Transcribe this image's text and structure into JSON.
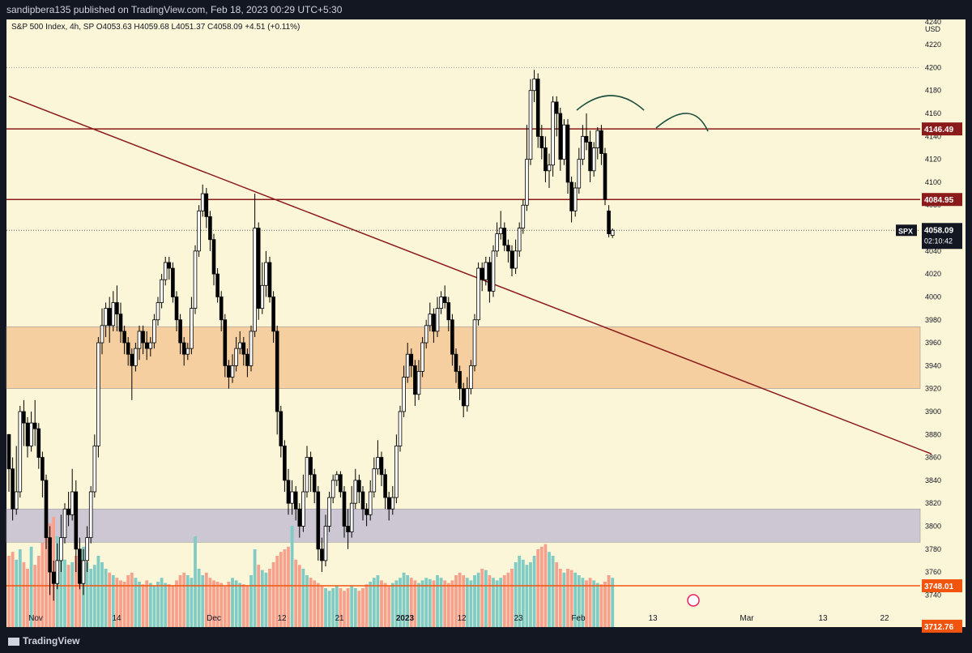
{
  "header": {
    "publish_line": "sandipbera135 published on TradingView.com, Feb 18, 2023 00:29 UTC+5:30"
  },
  "legend": {
    "text": "S&P 500 Index, 4h, SP  O4053.63  H4059.68  L4051.37  C4058.09  +4.51 (+0.11%)"
  },
  "footer": {
    "brand": "TradingView"
  },
  "colors": {
    "background": "#fbf6d8",
    "up_candle_fill": "#ffffff",
    "down_candle_fill": "#000000",
    "volume_up": "#80cbc4",
    "volume_down": "#f7a08c",
    "resistance_line": "#8b1a1a",
    "support_line": "#f0540f",
    "supply_zone": "#f5cfa0",
    "demand_zone": "#cdc7d4",
    "trendline": "#8b1a1a",
    "annotation": "#1f4f3f"
  },
  "chart_data": {
    "type": "candlestick",
    "symbol": "SPX",
    "timeframe": "4h",
    "currency": "USD",
    "ylim": [
      3712,
      4242
    ],
    "y_ticks": [
      3740,
      3760,
      3780,
      3800,
      3820,
      3840,
      3860,
      3880,
      3900,
      3920,
      3940,
      3960,
      3980,
      4000,
      4020,
      4040,
      4060,
      4080,
      4100,
      4120,
      4140,
      4160,
      4180,
      4200,
      4220,
      4240
    ],
    "x_ticks": [
      "Nov",
      "14",
      "Dec",
      "12",
      "21",
      "2023",
      "12",
      "23",
      "Feb",
      "13",
      "Mar",
      "13",
      "22"
    ],
    "price_labels": [
      {
        "label": "4146.49",
        "value": 4146.49,
        "kind": "resistance"
      },
      {
        "label": "4084.95",
        "value": 4084.95,
        "kind": "resistance"
      },
      {
        "label": "4058.09",
        "value": 4058.09,
        "kind": "last",
        "symbol": "SPX",
        "countdown": "02:10:42"
      },
      {
        "label": "3748.01",
        "value": 3748.01,
        "kind": "support"
      },
      {
        "label": "3712.76",
        "value": 3712.76,
        "kind": "support"
      }
    ],
    "horizontal_lines": [
      4146.49,
      4084.95,
      3748.01
    ],
    "zones": [
      {
        "name": "supply",
        "from": 3920,
        "to": 3974
      },
      {
        "name": "demand",
        "from": 3786,
        "to": 3815
      }
    ],
    "trendline": [
      {
        "bar": 0,
        "price": 4175
      },
      {
        "bar": 165,
        "price": 3863
      }
    ],
    "candles": [
      [
        3880,
        3850,
        3880,
        3830
      ],
      [
        3850,
        3815,
        3860,
        3805
      ],
      [
        3815,
        3830,
        3870,
        3810
      ],
      [
        3830,
        3900,
        3905,
        3825
      ],
      [
        3900,
        3890,
        3910,
        3870
      ],
      [
        3890,
        3870,
        3895,
        3860
      ],
      [
        3870,
        3890,
        3900,
        3865
      ],
      [
        3890,
        3885,
        3910,
        3870
      ],
      [
        3885,
        3860,
        3890,
        3850
      ],
      [
        3860,
        3840,
        3865,
        3825
      ],
      [
        3840,
        3790,
        3845,
        3780
      ],
      [
        3790,
        3760,
        3800,
        3740
      ],
      [
        3760,
        3750,
        3770,
        3735
      ],
      [
        3750,
        3770,
        3785,
        3745
      ],
      [
        3770,
        3790,
        3810,
        3760
      ],
      [
        3790,
        3815,
        3820,
        3785
      ],
      [
        3815,
        3810,
        3830,
        3800
      ],
      [
        3810,
        3830,
        3850,
        3805
      ],
      [
        3830,
        3780,
        3840,
        3760
      ],
      [
        3780,
        3750,
        3790,
        3745
      ],
      [
        3750,
        3770,
        3780,
        3740
      ],
      [
        3770,
        3790,
        3800,
        3760
      ],
      [
        3790,
        3830,
        3835,
        3785
      ],
      [
        3830,
        3870,
        3880,
        3825
      ],
      [
        3870,
        3960,
        3965,
        3860
      ],
      [
        3960,
        3975,
        3990,
        3950
      ],
      [
        3975,
        3990,
        3995,
        3965
      ],
      [
        3990,
        3975,
        4000,
        3960
      ],
      [
        3975,
        3995,
        4005,
        3970
      ],
      [
        3995,
        3985,
        4010,
        3970
      ],
      [
        3985,
        3970,
        3995,
        3960
      ],
      [
        3970,
        3960,
        3975,
        3950
      ],
      [
        3960,
        3950,
        3965,
        3940
      ],
      [
        3950,
        3940,
        3955,
        3910
      ],
      [
        3940,
        3955,
        3960,
        3935
      ],
      [
        3955,
        3970,
        3975,
        3945
      ],
      [
        3970,
        3960,
        3975,
        3950
      ],
      [
        3960,
        3955,
        3970,
        3945
      ],
      [
        3955,
        3960,
        3965,
        3948
      ],
      [
        3960,
        3980,
        3985,
        3955
      ],
      [
        3980,
        3995,
        4000,
        3975
      ],
      [
        3995,
        4015,
        4020,
        3990
      ],
      [
        4015,
        4030,
        4035,
        4010
      ],
      [
        4030,
        4025,
        4035,
        4015
      ],
      [
        4025,
        4000,
        4030,
        3995
      ],
      [
        4000,
        3980,
        4005,
        3970
      ],
      [
        3980,
        3960,
        3985,
        3950
      ],
      [
        3960,
        3950,
        3965,
        3940
      ],
      [
        3950,
        3955,
        3960,
        3945
      ],
      [
        3955,
        3990,
        4000,
        3950
      ],
      [
        3990,
        4040,
        4045,
        3985
      ],
      [
        4040,
        4075,
        4080,
        4035
      ],
      [
        4075,
        4090,
        4098,
        4070
      ],
      [
        4090,
        4070,
        4095,
        4060
      ],
      [
        4070,
        4050,
        4075,
        4040
      ],
      [
        4050,
        4020,
        4055,
        4010
      ],
      [
        4020,
        4000,
        4025,
        3995
      ],
      [
        4000,
        3980,
        4005,
        3970
      ],
      [
        3980,
        3940,
        3985,
        3930
      ],
      [
        3940,
        3930,
        3945,
        3920
      ],
      [
        3930,
        3940,
        3950,
        3925
      ],
      [
        3940,
        3955,
        3965,
        3935
      ],
      [
        3955,
        3960,
        3970,
        3950
      ],
      [
        3960,
        3950,
        3965,
        3940
      ],
      [
        3950,
        3940,
        3955,
        3930
      ],
      [
        3940,
        3970,
        3975,
        3935
      ],
      [
        3970,
        4060,
        4090,
        3965
      ],
      [
        4060,
        3990,
        4065,
        3980
      ],
      [
        3990,
        4010,
        4030,
        3985
      ],
      [
        4010,
        4030,
        4040,
        4000
      ],
      [
        4030,
        4000,
        4035,
        3995
      ],
      [
        4000,
        3970,
        4005,
        3960
      ],
      [
        3970,
        3900,
        3975,
        3880
      ],
      [
        3900,
        3870,
        3905,
        3860
      ],
      [
        3870,
        3840,
        3875,
        3830
      ],
      [
        3840,
        3820,
        3850,
        3810
      ],
      [
        3820,
        3830,
        3840,
        3810
      ],
      [
        3830,
        3815,
        3835,
        3805
      ],
      [
        3815,
        3800,
        3820,
        3790
      ],
      [
        3800,
        3830,
        3845,
        3795
      ],
      [
        3830,
        3860,
        3870,
        3825
      ],
      [
        3860,
        3845,
        3865,
        3830
      ],
      [
        3845,
        3830,
        3850,
        3820
      ],
      [
        3830,
        3780,
        3835,
        3770
      ],
      [
        3780,
        3770,
        3790,
        3760
      ],
      [
        3770,
        3800,
        3810,
        3765
      ],
      [
        3800,
        3825,
        3830,
        3795
      ],
      [
        3825,
        3840,
        3845,
        3820
      ],
      [
        3840,
        3845,
        3848,
        3835
      ],
      [
        3845,
        3830,
        3848,
        3825
      ],
      [
        3830,
        3800,
        3835,
        3790
      ],
      [
        3800,
        3795,
        3815,
        3780
      ],
      [
        3795,
        3820,
        3835,
        3790
      ],
      [
        3820,
        3840,
        3850,
        3815
      ],
      [
        3840,
        3830,
        3845,
        3820
      ],
      [
        3830,
        3815,
        3835,
        3805
      ],
      [
        3815,
        3810,
        3820,
        3800
      ],
      [
        3810,
        3830,
        3840,
        3805
      ],
      [
        3830,
        3850,
        3860,
        3825
      ],
      [
        3850,
        3860,
        3875,
        3845
      ],
      [
        3860,
        3845,
        3865,
        3835
      ],
      [
        3845,
        3825,
        3850,
        3815
      ],
      [
        3825,
        3815,
        3830,
        3805
      ],
      [
        3815,
        3825,
        3835,
        3810
      ],
      [
        3825,
        3870,
        3880,
        3820
      ],
      [
        3870,
        3900,
        3905,
        3865
      ],
      [
        3900,
        3930,
        3940,
        3895
      ],
      [
        3930,
        3950,
        3960,
        3925
      ],
      [
        3950,
        3940,
        3955,
        3930
      ],
      [
        3940,
        3915,
        3945,
        3905
      ],
      [
        3915,
        3935,
        3945,
        3910
      ],
      [
        3935,
        3960,
        3965,
        3930
      ],
      [
        3960,
        3975,
        3980,
        3955
      ],
      [
        3975,
        3985,
        3995,
        3970
      ],
      [
        3985,
        3970,
        3990,
        3960
      ],
      [
        3970,
        3990,
        4000,
        3965
      ],
      [
        3990,
        4000,
        4005,
        3985
      ],
      [
        4000,
        3995,
        4010,
        3990
      ],
      [
        3995,
        3980,
        4000,
        3970
      ],
      [
        3980,
        3950,
        3985,
        3940
      ],
      [
        3950,
        3935,
        3955,
        3925
      ],
      [
        3935,
        3920,
        3940,
        3910
      ],
      [
        3920,
        3905,
        3925,
        3895
      ],
      [
        3905,
        3920,
        3930,
        3900
      ],
      [
        3920,
        3940,
        3945,
        3915
      ],
      [
        3940,
        3980,
        3985,
        3935
      ],
      [
        3980,
        4025,
        4030,
        3975
      ],
      [
        4025,
        4015,
        4030,
        4005
      ],
      [
        4015,
        4030,
        4035,
        4010
      ],
      [
        4030,
        4005,
        4035,
        3995
      ],
      [
        4005,
        4040,
        4045,
        4000
      ],
      [
        4040,
        4055,
        4065,
        4035
      ],
      [
        4055,
        4060,
        4075,
        4050
      ],
      [
        4060,
        4045,
        4065,
        4040
      ],
      [
        4045,
        4040,
        4050,
        4030
      ],
      [
        4040,
        4025,
        4045,
        4018
      ],
      [
        4025,
        4040,
        4050,
        4020
      ],
      [
        4040,
        4060,
        4065,
        4035
      ],
      [
        4060,
        4080,
        4085,
        4055
      ],
      [
        4080,
        4120,
        4150,
        4075
      ],
      [
        4120,
        4180,
        4190,
        4115
      ],
      [
        4180,
        4190,
        4198,
        4170
      ],
      [
        4190,
        4140,
        4195,
        4130
      ],
      [
        4140,
        4130,
        4150,
        4120
      ],
      [
        4130,
        4110,
        4140,
        4100
      ],
      [
        4110,
        4115,
        4125,
        4095
      ],
      [
        4115,
        4170,
        4175,
        4105
      ],
      [
        4170,
        4160,
        4175,
        4140
      ],
      [
        4160,
        4120,
        4165,
        4110
      ],
      [
        4120,
        4150,
        4155,
        4115
      ],
      [
        4150,
        4100,
        4155,
        4090
      ],
      [
        4100,
        4075,
        4105,
        4065
      ],
      [
        4075,
        4095,
        4100,
        4070
      ],
      [
        4095,
        4120,
        4130,
        4090
      ],
      [
        4120,
        4140,
        4150,
        4115
      ],
      [
        4140,
        4135,
        4160,
        4128
      ],
      [
        4135,
        4110,
        4145,
        4100
      ],
      [
        4110,
        4130,
        4135,
        4105
      ],
      [
        4130,
        4145,
        4148,
        4120
      ],
      [
        4145,
        4125,
        4150,
        4115
      ],
      [
        4125,
        4085,
        4130,
        4080
      ],
      [
        4075,
        4055,
        4080,
        4052
      ],
      [
        4053.63,
        4058.09,
        4059.68,
        4051.37
      ]
    ],
    "volume": [
      0.55,
      0.58,
      0.52,
      0.6,
      0.5,
      0.45,
      0.62,
      0.48,
      0.55,
      0.65,
      0.72,
      0.8,
      0.85,
      0.7,
      0.6,
      0.52,
      0.48,
      0.5,
      0.55,
      0.6,
      0.62,
      0.5,
      0.45,
      0.48,
      0.55,
      0.5,
      0.45,
      0.42,
      0.4,
      0.38,
      0.36,
      0.35,
      0.4,
      0.42,
      0.38,
      0.35,
      0.33,
      0.36,
      0.34,
      0.32,
      0.35,
      0.38,
      0.34,
      0.33,
      0.32,
      0.36,
      0.4,
      0.42,
      0.4,
      0.38,
      0.7,
      0.45,
      0.4,
      0.42,
      0.38,
      0.36,
      0.35,
      0.34,
      0.32,
      0.35,
      0.38,
      0.36,
      0.34,
      0.33,
      0.32,
      0.4,
      0.6,
      0.48,
      0.44,
      0.42,
      0.45,
      0.5,
      0.55,
      0.58,
      0.6,
      0.62,
      0.78,
      0.52,
      0.48,
      0.45,
      0.4,
      0.38,
      0.36,
      0.34,
      0.32,
      0.3,
      0.28,
      0.3,
      0.32,
      0.3,
      0.28,
      0.3,
      0.32,
      0.3,
      0.28,
      0.3,
      0.33,
      0.35,
      0.38,
      0.4,
      0.36,
      0.34,
      0.32,
      0.34,
      0.36,
      0.38,
      0.42,
      0.4,
      0.38,
      0.36,
      0.34,
      0.36,
      0.38,
      0.37,
      0.36,
      0.4,
      0.38,
      0.36,
      0.34,
      0.36,
      0.4,
      0.42,
      0.4,
      0.38,
      0.36,
      0.4,
      0.42,
      0.45,
      0.44,
      0.4,
      0.38,
      0.36,
      0.38,
      0.4,
      0.42,
      0.45,
      0.5,
      0.55,
      0.52,
      0.48,
      0.5,
      0.55,
      0.6,
      0.62,
      0.64,
      0.58,
      0.55,
      0.5,
      0.45,
      0.42,
      0.45,
      0.44,
      0.42,
      0.4,
      0.38,
      0.36,
      0.38,
      0.36,
      0.34,
      0.33,
      0.35,
      0.4,
      0.38,
      0.36
    ],
    "annotations": [
      "left-arc",
      "right-arc"
    ]
  }
}
